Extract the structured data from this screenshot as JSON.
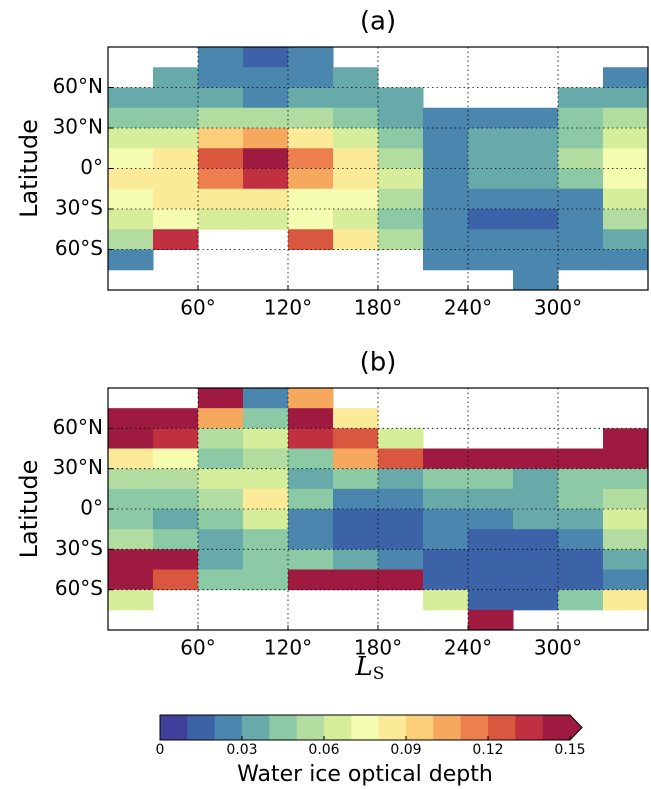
{
  "chart_data": [
    {
      "type": "heatmap",
      "title": "(a)",
      "ylabel": "Latitude",
      "x": [
        15,
        45,
        75,
        105,
        135,
        165,
        195,
        225,
        255,
        285,
        315,
        345
      ],
      "y": [
        82.5,
        67.5,
        52.5,
        37.5,
        22.5,
        7.5,
        -7.5,
        -22.5,
        -37.5,
        -52.5,
        -67.5,
        -82.5
      ],
      "values": [
        [
          null,
          null,
          0.02,
          0.01,
          0.02,
          null,
          null,
          null,
          null,
          null,
          null,
          null
        ],
        [
          null,
          0.03,
          0.02,
          0.02,
          0.02,
          0.03,
          null,
          null,
          null,
          null,
          null,
          0.02
        ],
        [
          0.03,
          0.03,
          0.03,
          0.02,
          0.03,
          0.03,
          0.03,
          null,
          null,
          null,
          0.03,
          0.03
        ],
        [
          0.04,
          0.04,
          0.05,
          0.05,
          0.05,
          0.04,
          0.03,
          0.02,
          0.02,
          0.02,
          0.04,
          0.05
        ],
        [
          0.06,
          0.06,
          0.09,
          0.1,
          0.08,
          0.06,
          0.04,
          0.02,
          0.03,
          0.03,
          0.04,
          0.06
        ],
        [
          0.07,
          0.08,
          0.12,
          0.14,
          0.11,
          0.08,
          0.05,
          0.02,
          0.03,
          0.03,
          0.05,
          0.07
        ],
        [
          0.08,
          0.08,
          0.11,
          0.13,
          0.1,
          0.08,
          0.06,
          0.02,
          0.03,
          0.03,
          0.04,
          0.07
        ],
        [
          0.07,
          0.08,
          0.08,
          0.08,
          0.07,
          0.07,
          0.05,
          0.02,
          0.02,
          0.02,
          0.02,
          0.06
        ],
        [
          0.06,
          0.07,
          0.06,
          0.06,
          0.07,
          0.06,
          0.04,
          0.02,
          0.01,
          0.01,
          0.02,
          0.05
        ],
        [
          0.05,
          0.13,
          null,
          null,
          0.12,
          0.08,
          0.05,
          0.02,
          0.02,
          0.02,
          0.02,
          0.03
        ],
        [
          0.02,
          null,
          null,
          null,
          null,
          null,
          null,
          0.02,
          0.02,
          0.02,
          0.02,
          0.02
        ],
        [
          null,
          null,
          null,
          null,
          null,
          null,
          null,
          null,
          null,
          0.02,
          null,
          null
        ]
      ],
      "xlim": [
        0,
        360
      ],
      "ylim": [
        -90,
        90
      ],
      "xticks": [
        {
          "value": 60,
          "label": "60°"
        },
        {
          "value": 120,
          "label": "120°"
        },
        {
          "value": 180,
          "label": "180°"
        },
        {
          "value": 240,
          "label": "240°"
        },
        {
          "value": 300,
          "label": "300°"
        }
      ],
      "yticks": [
        {
          "value": 60,
          "label": "60°N"
        },
        {
          "value": 30,
          "label": "30°N"
        },
        {
          "value": 0,
          "label": "0°"
        },
        {
          "value": -30,
          "label": "30°S"
        },
        {
          "value": -60,
          "label": "60°S"
        }
      ],
      "grid": true
    },
    {
      "type": "heatmap",
      "title": "(b)",
      "ylabel": "Latitude",
      "xlabel": "L",
      "xlabel_sub": "S",
      "x": [
        15,
        45,
        75,
        105,
        135,
        165,
        195,
        225,
        255,
        285,
        315,
        345
      ],
      "y": [
        82.5,
        67.5,
        52.5,
        37.5,
        22.5,
        7.5,
        -7.5,
        -22.5,
        -37.5,
        -52.5,
        -67.5,
        -82.5
      ],
      "values": [
        [
          null,
          null,
          0.15,
          0.02,
          0.1,
          null,
          null,
          null,
          null,
          null,
          null,
          null
        ],
        [
          0.14,
          0.15,
          0.1,
          0.04,
          0.15,
          0.08,
          null,
          null,
          null,
          null,
          null,
          null
        ],
        [
          0.15,
          0.13,
          0.05,
          0.06,
          0.13,
          0.12,
          0.06,
          null,
          null,
          null,
          null,
          0.15
        ],
        [
          0.08,
          0.07,
          0.04,
          0.05,
          0.04,
          0.1,
          0.12,
          0.15,
          0.15,
          0.15,
          0.15,
          0.15
        ],
        [
          0.05,
          0.05,
          0.06,
          0.06,
          0.03,
          0.04,
          0.03,
          0.04,
          0.04,
          0.03,
          0.04,
          0.04
        ],
        [
          0.04,
          0.04,
          0.05,
          0.08,
          0.04,
          0.02,
          0.02,
          0.03,
          0.03,
          0.03,
          0.04,
          0.05
        ],
        [
          0.04,
          0.03,
          0.04,
          0.06,
          0.02,
          0.01,
          0.01,
          0.02,
          0.02,
          0.03,
          0.03,
          0.06
        ],
        [
          0.05,
          0.04,
          0.03,
          0.04,
          0.02,
          0.01,
          0.01,
          0.02,
          0.01,
          0.01,
          0.02,
          0.05
        ],
        [
          0.15,
          0.15,
          0.03,
          0.04,
          0.04,
          0.03,
          0.02,
          0.01,
          0.01,
          0.01,
          0.01,
          0.03
        ],
        [
          0.15,
          0.12,
          0.04,
          0.04,
          0.15,
          0.15,
          0.15,
          0.01,
          0.01,
          0.01,
          0.01,
          0.02
        ],
        [
          0.06,
          null,
          null,
          null,
          null,
          null,
          null,
          0.06,
          0.01,
          0.01,
          0.04,
          0.08
        ],
        [
          null,
          null,
          null,
          null,
          null,
          null,
          null,
          null,
          0.15,
          null,
          null,
          null
        ]
      ],
      "xlim": [
        0,
        360
      ],
      "ylim": [
        -90,
        90
      ],
      "xticks": [
        {
          "value": 60,
          "label": "60°"
        },
        {
          "value": 120,
          "label": "120°"
        },
        {
          "value": 180,
          "label": "180°"
        },
        {
          "value": 240,
          "label": "240°"
        },
        {
          "value": 300,
          "label": "300°"
        }
      ],
      "yticks": [
        {
          "value": 60,
          "label": "60°N"
        },
        {
          "value": 30,
          "label": "30°N"
        },
        {
          "value": 0,
          "label": "0°"
        },
        {
          "value": -30,
          "label": "30°S"
        },
        {
          "value": -60,
          "label": "60°S"
        }
      ],
      "grid": true
    }
  ],
  "colorbar": {
    "label": "Water ice optical depth",
    "clim": [
      0,
      0.15
    ],
    "ticks": [
      0,
      0.03,
      0.06,
      0.09,
      0.12,
      0.15
    ],
    "colors": [
      "#40409a",
      "#3c62a8",
      "#4a86ad",
      "#67aaa9",
      "#8ccaa5",
      "#b2dca0",
      "#d6ee9b",
      "#f5fbb0",
      "#fbeb98",
      "#fbcf79",
      "#f6a95e",
      "#ec7f4d",
      "#d9573f",
      "#c03041",
      "#9e1a40"
    ]
  }
}
